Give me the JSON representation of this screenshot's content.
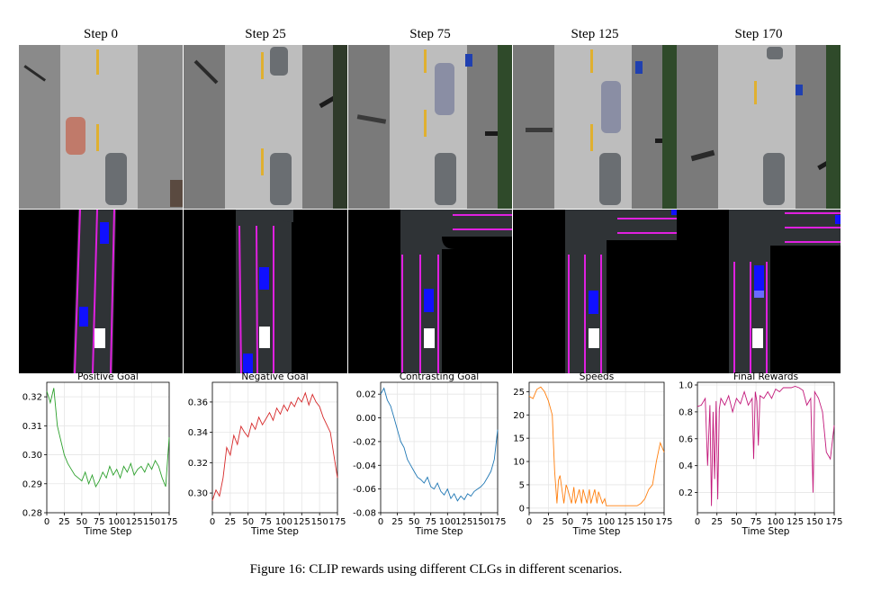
{
  "columns": [
    {
      "title": "Step 0"
    },
    {
      "title": "Step 25"
    },
    {
      "title": "Step 75"
    },
    {
      "title": "Step 125"
    },
    {
      "title": "Step 170"
    }
  ],
  "caption": "Figure 16: CLIP rewards using different CLGs in different scenarios.",
  "colors": {
    "positive": "#2ca02c",
    "negative": "#d62728",
    "contrasting": "#1f77b4",
    "speeds": "#ff7f0e",
    "final": "#c2187a",
    "lane_line": "#e020e0",
    "agent_box": "#1010ff",
    "ego_box": "#ffffff",
    "road_dark": "#2f3336"
  },
  "chart_data": [
    {
      "type": "line",
      "title": "Positive Goal",
      "xlabel": "Time Step",
      "ylabel": "",
      "xlim": [
        0,
        175
      ],
      "ylim": [
        0.28,
        0.325
      ],
      "xticks": [
        "0",
        "25",
        "50",
        "75",
        "100",
        "125",
        "150",
        "175"
      ],
      "yticks": [
        "0.28",
        "0.29",
        "0.30",
        "0.31",
        "0.32"
      ],
      "grid": true,
      "series": [
        {
          "x": [
            0,
            5,
            10,
            15,
            20,
            25,
            30,
            35,
            40,
            45,
            50,
            55,
            60,
            65,
            70,
            75,
            80,
            85,
            90,
            95,
            100,
            105,
            110,
            115,
            120,
            125,
            130,
            135,
            140,
            145,
            150,
            155,
            160,
            165,
            170,
            175
          ],
          "values": [
            0.322,
            0.318,
            0.323,
            0.31,
            0.305,
            0.3,
            0.297,
            0.295,
            0.293,
            0.292,
            0.291,
            0.294,
            0.29,
            0.293,
            0.289,
            0.291,
            0.294,
            0.292,
            0.296,
            0.293,
            0.295,
            0.292,
            0.296,
            0.294,
            0.297,
            0.293,
            0.295,
            0.296,
            0.294,
            0.297,
            0.295,
            0.298,
            0.296,
            0.292,
            0.289,
            0.306
          ]
        }
      ]
    },
    {
      "type": "line",
      "title": "Negative Goal",
      "xlabel": "Time Step",
      "ylabel": "",
      "xlim": [
        0,
        175
      ],
      "ylim": [
        0.287,
        0.373
      ],
      "xticks": [
        "0",
        "25",
        "50",
        "75",
        "100",
        "125",
        "150",
        "175"
      ],
      "yticks": [
        "0.30",
        "0.32",
        "0.34",
        "0.36"
      ],
      "grid": true,
      "series": [
        {
          "x": [
            0,
            5,
            10,
            15,
            20,
            25,
            30,
            35,
            40,
            45,
            50,
            55,
            60,
            65,
            70,
            75,
            80,
            85,
            90,
            95,
            100,
            105,
            110,
            115,
            120,
            125,
            130,
            135,
            140,
            145,
            150,
            155,
            160,
            165,
            170,
            175
          ],
          "values": [
            0.295,
            0.302,
            0.298,
            0.31,
            0.33,
            0.325,
            0.338,
            0.332,
            0.344,
            0.34,
            0.337,
            0.346,
            0.342,
            0.35,
            0.345,
            0.349,
            0.353,
            0.348,
            0.356,
            0.352,
            0.358,
            0.354,
            0.36,
            0.357,
            0.363,
            0.36,
            0.366,
            0.358,
            0.365,
            0.36,
            0.357,
            0.35,
            0.345,
            0.34,
            0.325,
            0.31
          ]
        }
      ]
    },
    {
      "type": "line",
      "title": "Contrasting Goal",
      "xlabel": "Time Step",
      "ylabel": "",
      "xlim": [
        0,
        175
      ],
      "ylim": [
        -0.08,
        0.03
      ],
      "xticks": [
        "0",
        "25",
        "50",
        "75",
        "100",
        "125",
        "150",
        "175"
      ],
      "yticks": [
        "-0.08",
        "-0.06",
        "-0.04",
        "-0.02",
        "0.00",
        "0.02"
      ],
      "grid": true,
      "series": [
        {
          "x": [
            0,
            5,
            10,
            15,
            20,
            25,
            30,
            35,
            40,
            45,
            50,
            55,
            60,
            65,
            70,
            75,
            80,
            85,
            90,
            95,
            100,
            105,
            110,
            115,
            120,
            125,
            130,
            135,
            140,
            145,
            150,
            155,
            160,
            165,
            170,
            175
          ],
          "values": [
            0.02,
            0.025,
            0.015,
            0.01,
            0.0,
            -0.01,
            -0.02,
            -0.025,
            -0.035,
            -0.04,
            -0.045,
            -0.05,
            -0.052,
            -0.055,
            -0.05,
            -0.058,
            -0.06,
            -0.055,
            -0.062,
            -0.065,
            -0.06,
            -0.068,
            -0.064,
            -0.07,
            -0.066,
            -0.069,
            -0.064,
            -0.066,
            -0.062,
            -0.06,
            -0.058,
            -0.055,
            -0.05,
            -0.045,
            -0.035,
            -0.01
          ]
        }
      ]
    },
    {
      "type": "line",
      "title": "Speeds",
      "xlabel": "Time Step",
      "ylabel": "",
      "xlim": [
        0,
        175
      ],
      "ylim": [
        -1,
        27
      ],
      "xticks": [
        "0",
        "25",
        "50",
        "75",
        "100",
        "125",
        "150",
        "175"
      ],
      "yticks": [
        "0",
        "5",
        "10",
        "15",
        "20",
        "25"
      ],
      "grid": true,
      "series": [
        {
          "x": [
            0,
            5,
            10,
            15,
            20,
            25,
            30,
            33,
            36,
            38,
            40,
            45,
            48,
            50,
            55,
            58,
            60,
            65,
            68,
            70,
            75,
            78,
            80,
            85,
            88,
            90,
            95,
            98,
            100,
            110,
            120,
            130,
            140,
            145,
            150,
            155,
            160,
            165,
            170,
            175
          ],
          "values": [
            24,
            23.5,
            25.5,
            26,
            25,
            23,
            20,
            8,
            1,
            6,
            7,
            1,
            5,
            4,
            1,
            4.5,
            1,
            4,
            1,
            4,
            1,
            4,
            1,
            4,
            1,
            3.5,
            1,
            2,
            0.5,
            0.5,
            0.5,
            0.5,
            0.5,
            1,
            2,
            4,
            5,
            10,
            14,
            12
          ]
        }
      ]
    },
    {
      "type": "line",
      "title": "Final Rewards",
      "xlabel": "Time Step",
      "ylabel": "",
      "xlim": [
        0,
        175
      ],
      "ylim": [
        0.05,
        1.02
      ],
      "xticks": [
        "0",
        "25",
        "50",
        "75",
        "100",
        "125",
        "150",
        "175"
      ],
      "yticks": [
        "0.2",
        "0.4",
        "0.6",
        "0.8",
        "1.0"
      ],
      "grid": true,
      "series": [
        {
          "x": [
            0,
            5,
            10,
            13,
            16,
            18,
            20,
            22,
            24,
            26,
            28,
            30,
            35,
            40,
            45,
            50,
            55,
            60,
            65,
            70,
            72,
            74,
            76,
            78,
            80,
            85,
            90,
            95,
            100,
            105,
            110,
            115,
            120,
            125,
            130,
            135,
            140,
            145,
            148,
            150,
            155,
            160,
            165,
            170,
            175
          ],
          "values": [
            0.84,
            0.85,
            0.9,
            0.4,
            0.85,
            0.1,
            0.8,
            0.3,
            0.88,
            0.15,
            0.82,
            0.9,
            0.85,
            0.92,
            0.8,
            0.9,
            0.86,
            0.95,
            0.85,
            0.9,
            0.45,
            0.95,
            0.88,
            0.55,
            0.92,
            0.9,
            0.95,
            0.9,
            0.97,
            0.95,
            0.98,
            0.98,
            0.98,
            0.99,
            0.98,
            0.96,
            0.85,
            0.9,
            0.2,
            0.95,
            0.9,
            0.8,
            0.5,
            0.45,
            0.7
          ]
        }
      ]
    }
  ]
}
